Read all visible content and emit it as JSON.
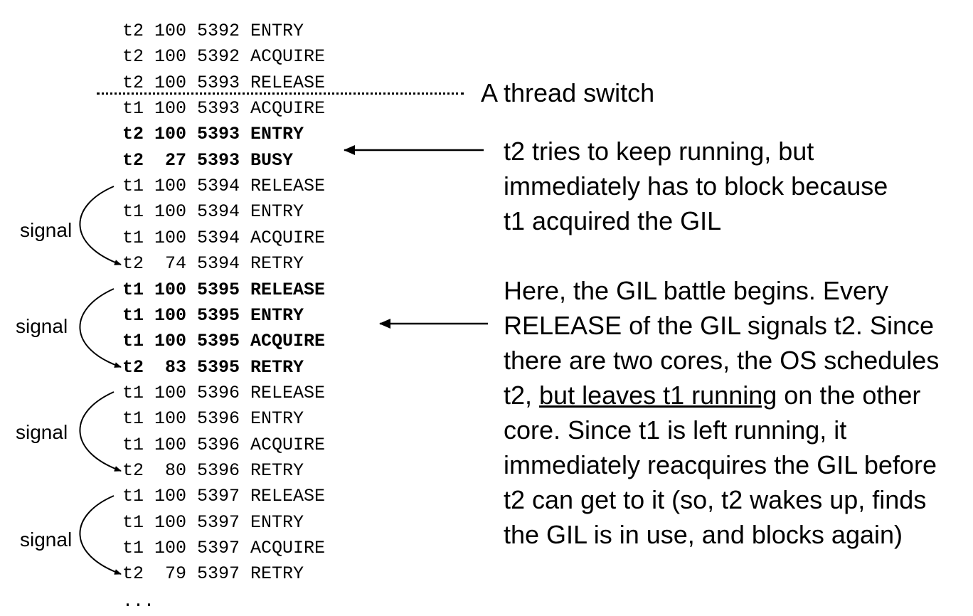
{
  "rows": [
    {
      "thread": "t2",
      "val": "100",
      "tick": "5392",
      "event": "ENTRY",
      "bold": false
    },
    {
      "thread": "t2",
      "val": "100",
      "tick": "5392",
      "event": "ACQUIRE",
      "bold": false
    },
    {
      "thread": "t2",
      "val": "100",
      "tick": "5393",
      "event": "RELEASE",
      "bold": false
    },
    {
      "thread": "t1",
      "val": "100",
      "tick": "5393",
      "event": "ACQUIRE",
      "bold": false
    },
    {
      "thread": "t2",
      "val": "100",
      "tick": "5393",
      "event": "ENTRY",
      "bold": true
    },
    {
      "thread": "t2",
      "val": "27",
      "tick": "5393",
      "event": "BUSY",
      "bold": true
    },
    {
      "thread": "t1",
      "val": "100",
      "tick": "5394",
      "event": "RELEASE",
      "bold": false
    },
    {
      "thread": "t1",
      "val": "100",
      "tick": "5394",
      "event": "ENTRY",
      "bold": false
    },
    {
      "thread": "t1",
      "val": "100",
      "tick": "5394",
      "event": "ACQUIRE",
      "bold": false
    },
    {
      "thread": "t2",
      "val": "74",
      "tick": "5394",
      "event": "RETRY",
      "bold": false
    },
    {
      "thread": "t1",
      "val": "100",
      "tick": "5395",
      "event": "RELEASE",
      "bold": true
    },
    {
      "thread": "t1",
      "val": "100",
      "tick": "5395",
      "event": "ENTRY",
      "bold": true
    },
    {
      "thread": "t1",
      "val": "100",
      "tick": "5395",
      "event": "ACQUIRE",
      "bold": true
    },
    {
      "thread": "t2",
      "val": "83",
      "tick": "5395",
      "event": "RETRY",
      "bold": true
    },
    {
      "thread": "t1",
      "val": "100",
      "tick": "5396",
      "event": "RELEASE",
      "bold": false
    },
    {
      "thread": "t1",
      "val": "100",
      "tick": "5396",
      "event": "ENTRY",
      "bold": false
    },
    {
      "thread": "t1",
      "val": "100",
      "tick": "5396",
      "event": "ACQUIRE",
      "bold": false
    },
    {
      "thread": "t2",
      "val": "80",
      "tick": "5396",
      "event": "RETRY",
      "bold": false
    },
    {
      "thread": "t1",
      "val": "100",
      "tick": "5397",
      "event": "RELEASE",
      "bold": false
    },
    {
      "thread": "t1",
      "val": "100",
      "tick": "5397",
      "event": "ENTRY",
      "bold": false
    },
    {
      "thread": "t1",
      "val": "100",
      "tick": "5397",
      "event": "ACQUIRE",
      "bold": false
    },
    {
      "thread": "t2",
      "val": "79",
      "tick": "5397",
      "event": "RETRY",
      "bold": false
    }
  ],
  "ellipsis": "...",
  "signal_label": "signal",
  "annotations": {
    "thread_switch": "A thread switch",
    "busy_note": {
      "line1": "t2 tries to keep running, but",
      "line2": "immediately has to block because",
      "line3": "t1 acquired the GIL"
    },
    "battle_note": {
      "line1": "Here, the GIL battle begins.  Every",
      "line2": "RELEASE of the GIL signals t2.  Since",
      "line3": "there are two cores, the OS schedules",
      "line4_pre": "t2, ",
      "line4_under": "but leaves t1 running",
      "line4_post": " on the other",
      "line5": "core.  Since t1 is left running, it",
      "line6": "immediately reacquires the GIL before",
      "line7": "t2 can get to it (so, t2 wakes up, finds",
      "line8": "the GIL is in use, and blocks again)"
    }
  }
}
